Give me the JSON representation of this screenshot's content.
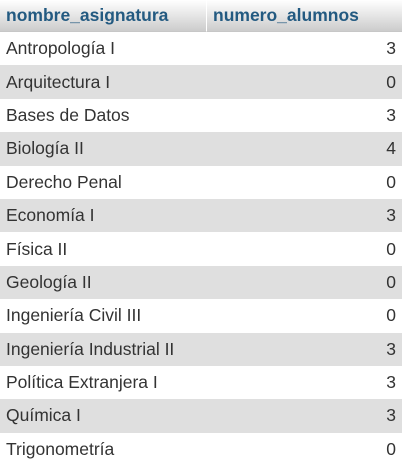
{
  "table": {
    "columns": [
      "nombre_asignatura",
      "numero_alumnos"
    ],
    "rows": [
      {
        "nombre_asignatura": "Antropología I",
        "numero_alumnos": "3"
      },
      {
        "nombre_asignatura": "Arquitectura I",
        "numero_alumnos": "0"
      },
      {
        "nombre_asignatura": "Bases de Datos",
        "numero_alumnos": "3"
      },
      {
        "nombre_asignatura": "Biología II",
        "numero_alumnos": "4"
      },
      {
        "nombre_asignatura": "Derecho Penal",
        "numero_alumnos": "0"
      },
      {
        "nombre_asignatura": "Economía I",
        "numero_alumnos": "3"
      },
      {
        "nombre_asignatura": "Física II",
        "numero_alumnos": "0"
      },
      {
        "nombre_asignatura": "Geología II",
        "numero_alumnos": "0"
      },
      {
        "nombre_asignatura": "Ingeniería Civil III",
        "numero_alumnos": "0"
      },
      {
        "nombre_asignatura": "Ingeniería Industrial II",
        "numero_alumnos": "3"
      },
      {
        "nombre_asignatura": "Política Extranjera I",
        "numero_alumnos": "3"
      },
      {
        "nombre_asignatura": "Química I",
        "numero_alumnos": "3"
      },
      {
        "nombre_asignatura": "Trigonometría",
        "numero_alumnos": "0"
      }
    ]
  },
  "colors": {
    "header_text": "#235a81",
    "row_text": "#333333",
    "row_even_bg": "#ffffff",
    "row_odd_bg": "#dfdfdf"
  }
}
